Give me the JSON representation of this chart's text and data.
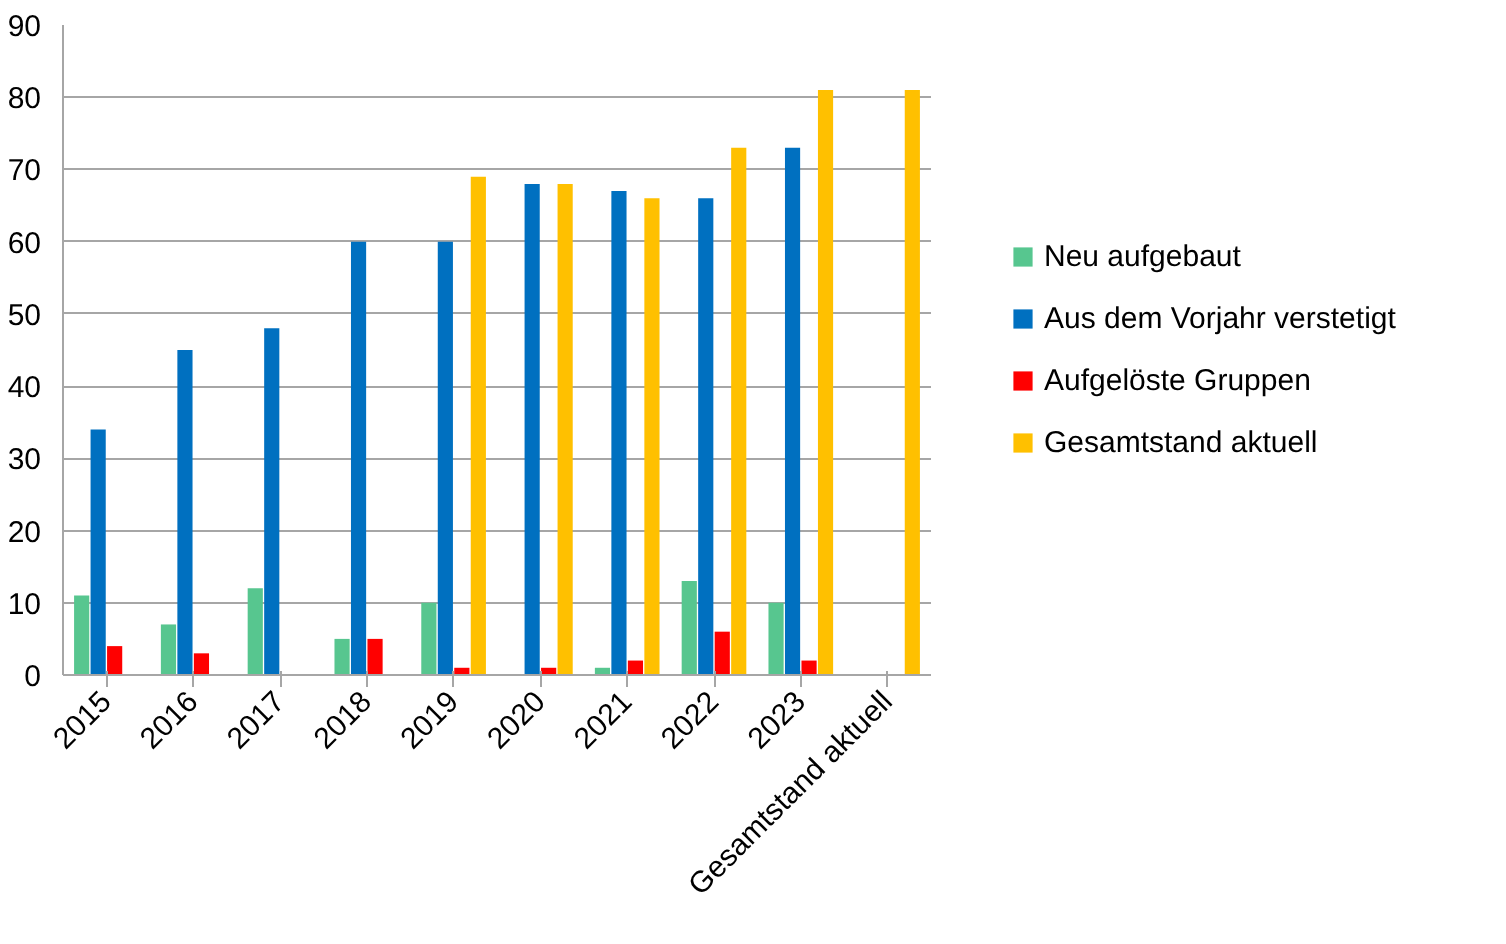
{
  "chart_data": {
    "type": "bar",
    "categories": [
      "2015",
      "2016",
      "2017",
      "2018",
      "2019",
      "2020",
      "2021",
      "2022",
      "2023",
      "Gesamtstand aktuell"
    ],
    "series": [
      {
        "name": "Neu aufgebaut",
        "color": "#57c68f",
        "values": [
          11,
          7,
          12,
          5,
          10,
          null,
          1,
          13,
          10,
          null
        ]
      },
      {
        "name": "Aus dem Vorjahr verstetigt",
        "color": "#0070c0",
        "values": [
          34,
          45,
          48,
          60,
          60,
          68,
          67,
          66,
          73,
          null
        ]
      },
      {
        "name": "Aufgelöste Gruppen",
        "color": "#ff0000",
        "values": [
          4,
          3,
          null,
          5,
          1,
          1,
          2,
          6,
          2,
          null
        ]
      },
      {
        "name": "Gesamtstand aktuell",
        "color": "#ffc000",
        "values": [
          null,
          null,
          null,
          null,
          69,
          68,
          66,
          73,
          81,
          81
        ]
      }
    ],
    "ylim": [
      0,
      90
    ],
    "yticks": [
      0,
      10,
      20,
      30,
      40,
      50,
      60,
      70,
      80,
      90
    ],
    "grid": "y",
    "legend": "right"
  }
}
